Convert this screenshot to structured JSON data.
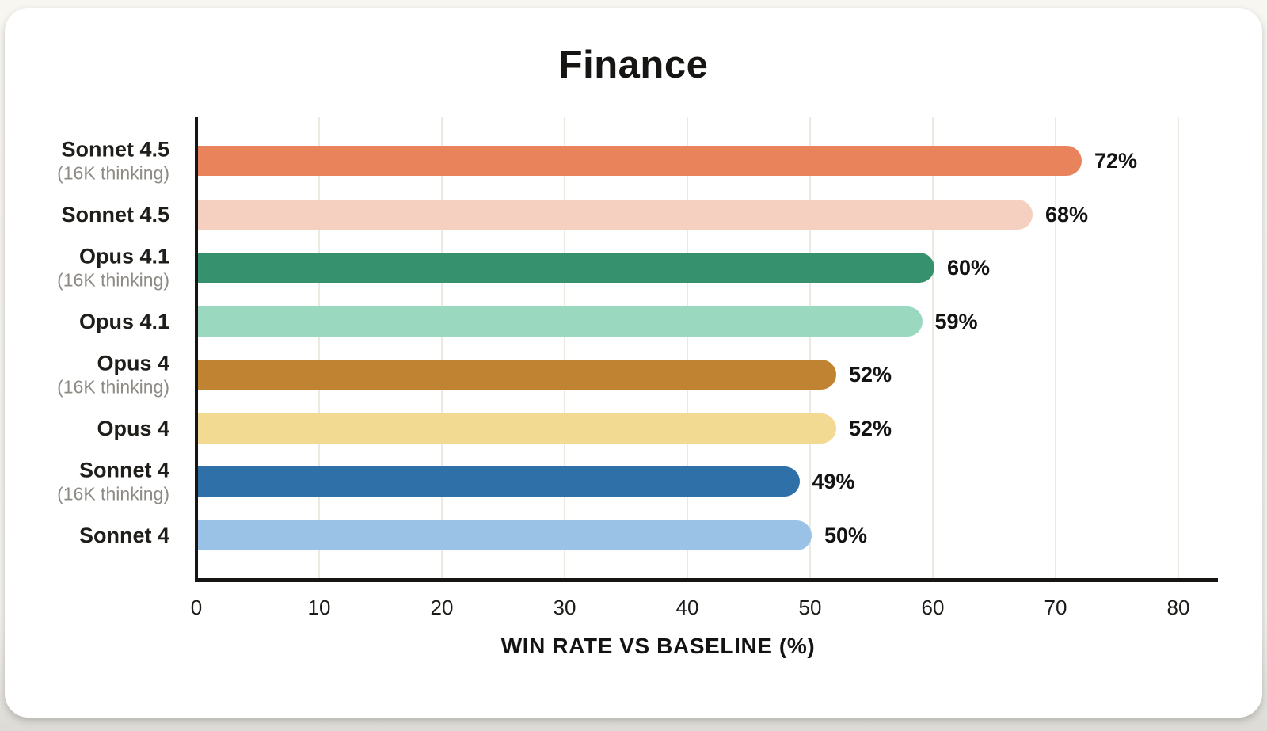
{
  "page": {
    "background": "#f3f1ec",
    "card_background": "#ffffff"
  },
  "chart_data": {
    "type": "bar",
    "orientation": "horizontal",
    "title": "Finance",
    "xlabel": "WIN RATE VS BASELINE (%)",
    "ylabel": "",
    "xlim": [
      0,
      80
    ],
    "x_ticks": [
      0,
      10,
      20,
      30,
      40,
      50,
      60,
      70,
      80
    ],
    "grid": "vertical-gridlines",
    "legend": "none",
    "categories": [
      {
        "label": "Sonnet 4.5",
        "sublabel": "(16K thinking)"
      },
      {
        "label": "Sonnet 4.5",
        "sublabel": ""
      },
      {
        "label": "Opus 4.1",
        "sublabel": "(16K thinking)"
      },
      {
        "label": "Opus 4.1",
        "sublabel": ""
      },
      {
        "label": "Opus 4",
        "sublabel": "(16K thinking)"
      },
      {
        "label": "Opus 4",
        "sublabel": ""
      },
      {
        "label": "Sonnet 4",
        "sublabel": "(16K thinking)"
      },
      {
        "label": "Sonnet 4",
        "sublabel": ""
      }
    ],
    "values": [
      72,
      68,
      60,
      59,
      52,
      52,
      49,
      50
    ],
    "value_labels": [
      "72%",
      "68%",
      "60%",
      "59%",
      "52%",
      "52%",
      "49%",
      "50%"
    ],
    "bar_colors": [
      "#e8835c",
      "#f5cfc0",
      "#36916f",
      "#9ad8bf",
      "#bf8332",
      "#f3da93",
      "#3070a8",
      "#9ac2e6"
    ],
    "colors": {
      "axis": "#161513",
      "gridline": "#ece9e0",
      "category_label": "#1f1e1b",
      "category_sublabel": "#8e8b85",
      "value_text": "#131313",
      "title_text": "#161513"
    }
  }
}
